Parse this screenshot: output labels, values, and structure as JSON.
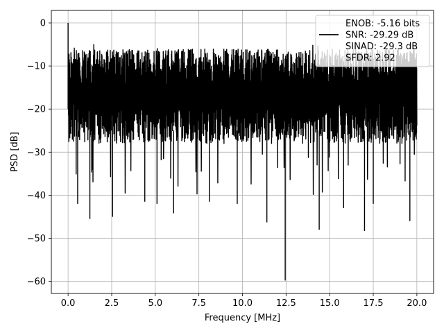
{
  "chart_data": {
    "type": "line",
    "title": "",
    "xlabel": "Frequency [MHz]",
    "ylabel": "PSD [dB]",
    "xlim": [
      -0.96,
      20.96
    ],
    "ylim": [
      -62.8,
      2.9
    ],
    "x_ticks": [
      0.0,
      2.5,
      5.0,
      7.5,
      10.0,
      12.5,
      15.0,
      17.5,
      20.0
    ],
    "x_tick_labels": [
      "0.0",
      "2.5",
      "5.0",
      "7.5",
      "10.0",
      "12.5",
      "15.0",
      "17.5",
      "20.0"
    ],
    "y_ticks": [
      0,
      -10,
      -20,
      -30,
      -40,
      -50,
      -60
    ],
    "y_tick_labels": [
      "0",
      "−10",
      "−20",
      "−30",
      "−40",
      "−50",
      "−60"
    ],
    "grid": true,
    "legend_position": "top-right",
    "series": [
      {
        "name": "",
        "color": "#000000",
        "x_range": [
          0.0,
          20.0
        ],
        "peak": {
          "x": 0.0,
          "y": 0.0
        },
        "upper_envelope_db": -6.0,
        "lower_envelope_db": -28.0,
        "typical_range_db": [
          -30,
          -5
        ],
        "notable_minima": [
          {
            "x": 0.55,
            "y": -42.0
          },
          {
            "x": 1.25,
            "y": -45.5
          },
          {
            "x": 2.55,
            "y": -45.0
          },
          {
            "x": 4.4,
            "y": -41.5
          },
          {
            "x": 5.1,
            "y": -42.0
          },
          {
            "x": 6.05,
            "y": -44.2
          },
          {
            "x": 8.1,
            "y": -41.5
          },
          {
            "x": 9.7,
            "y": -42.0
          },
          {
            "x": 11.4,
            "y": -46.3
          },
          {
            "x": 12.45,
            "y": -59.8
          },
          {
            "x": 14.4,
            "y": -48.0
          },
          {
            "x": 15.8,
            "y": -43.0
          },
          {
            "x": 17.0,
            "y": -48.3
          },
          {
            "x": 17.5,
            "y": -42.0
          },
          {
            "x": 19.6,
            "y": -46.0
          }
        ]
      }
    ],
    "legend": {
      "entries": [
        {
          "label": "ENOB: -5.16 bits",
          "has_line": false
        },
        {
          "label": "SNR: -29.29 dB",
          "has_line": true,
          "color": "#000000"
        },
        {
          "label": "SINAD: -29.3 dB",
          "has_line": false
        },
        {
          "label": "SFDR: 2.92",
          "has_line": false
        }
      ]
    }
  }
}
